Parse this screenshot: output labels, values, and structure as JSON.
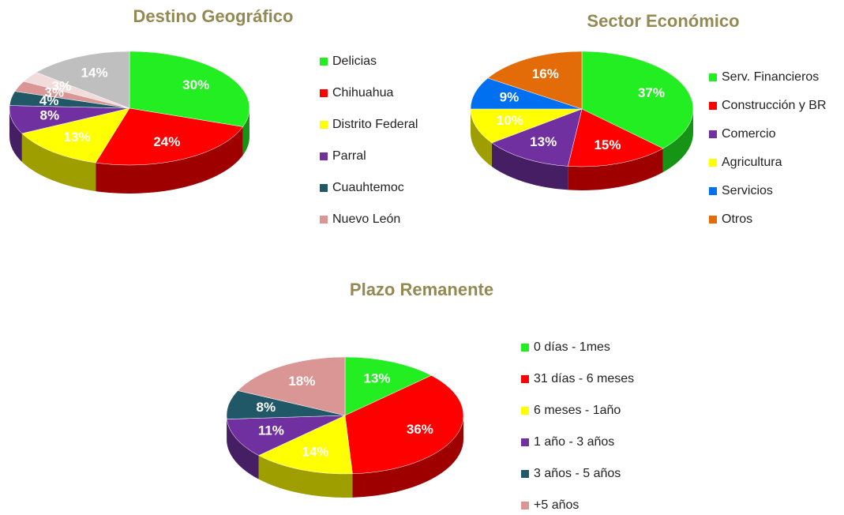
{
  "chart_data": [
    {
      "type": "pie",
      "title": "Destino Geográfico",
      "categories": [
        "Delicias",
        "Chihuahua",
        "Distrito Federal",
        "Parral",
        "Cuauhtemoc",
        "Nuevo León",
        null,
        null
      ],
      "values": [
        30,
        24,
        13,
        8,
        4,
        3,
        3,
        14
      ],
      "value_labels": [
        "30%",
        "24%",
        "13%",
        "8%",
        "4%",
        "3%",
        "3%",
        "14%"
      ],
      "colors": [
        "#22ee22",
        "#ff0000",
        "#ffff00",
        "#7030a0",
        "#215868",
        "#d99694",
        "#f2dcdb",
        "#bfbfbf"
      ]
    },
    {
      "type": "pie",
      "title": "Sector Económico",
      "categories": [
        "Serv. Financieros",
        "Construcción y BR",
        "Comercio",
        "Agricultura",
        "Servicios",
        "Otros"
      ],
      "values": [
        37,
        15,
        13,
        10,
        9,
        16
      ],
      "value_labels": [
        "37%",
        "15%",
        "13%",
        "10%",
        "9%",
        "16%"
      ],
      "colors": [
        "#22ee22",
        "#ff0000",
        "#7030a0",
        "#ffff00",
        "#0070f0",
        "#e36c09"
      ]
    },
    {
      "type": "pie",
      "title": "Plazo Remanente",
      "categories": [
        "0 días - 1mes",
        "31 días - 6 meses",
        "6 meses - 1año",
        "1 año - 3 años",
        "3 años - 5 años",
        "+5 años"
      ],
      "values": [
        13,
        36,
        14,
        11,
        8,
        18
      ],
      "value_labels": [
        "13%",
        "36%",
        "14%",
        "11%",
        "8%",
        "18%"
      ],
      "colors": [
        "#22ee22",
        "#ff0000",
        "#ffff00",
        "#7030a0",
        "#215868",
        "#d99694"
      ]
    }
  ]
}
